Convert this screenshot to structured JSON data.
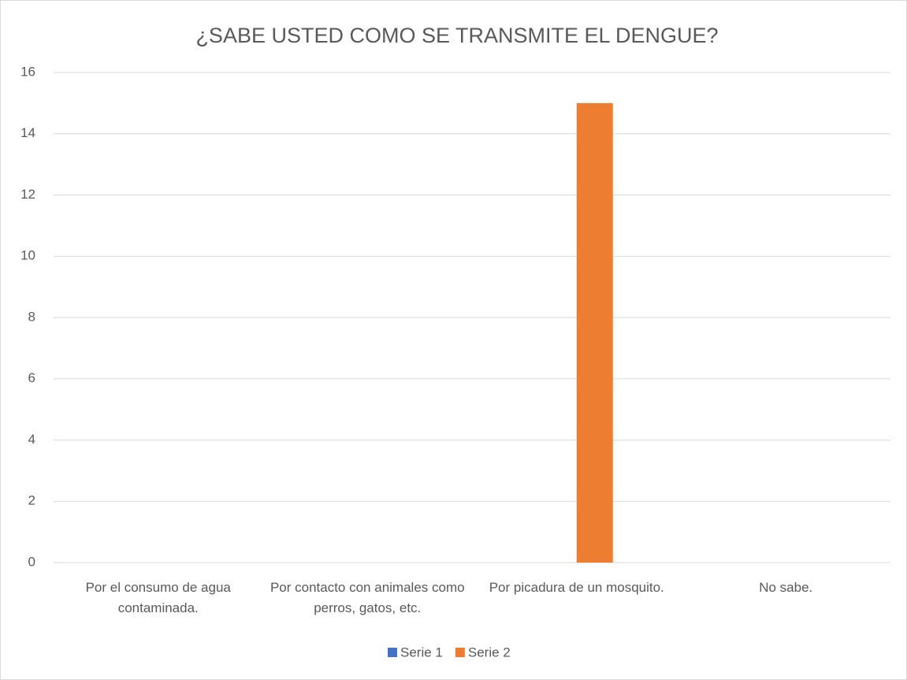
{
  "chart_data": {
    "type": "bar",
    "title": "¿SABE USTED COMO SE TRANSMITE EL DENGUE?",
    "categories": [
      "Por el consumo de agua contaminada.",
      "Por contacto con animales como perros, gatos, etc.",
      "Por picadura de un mosquito.",
      "No sabe."
    ],
    "series": [
      {
        "name": "Serie 1",
        "color": "#4472c4",
        "values": [
          0,
          0,
          0,
          0
        ]
      },
      {
        "name": "Serie 2",
        "color": "#ed7d31",
        "values": [
          0,
          0,
          15,
          0
        ]
      }
    ],
    "ylim": [
      0,
      16
    ],
    "yticks": [
      0,
      2,
      4,
      6,
      8,
      10,
      12,
      14,
      16
    ],
    "grid": true,
    "legend": "bottom"
  }
}
